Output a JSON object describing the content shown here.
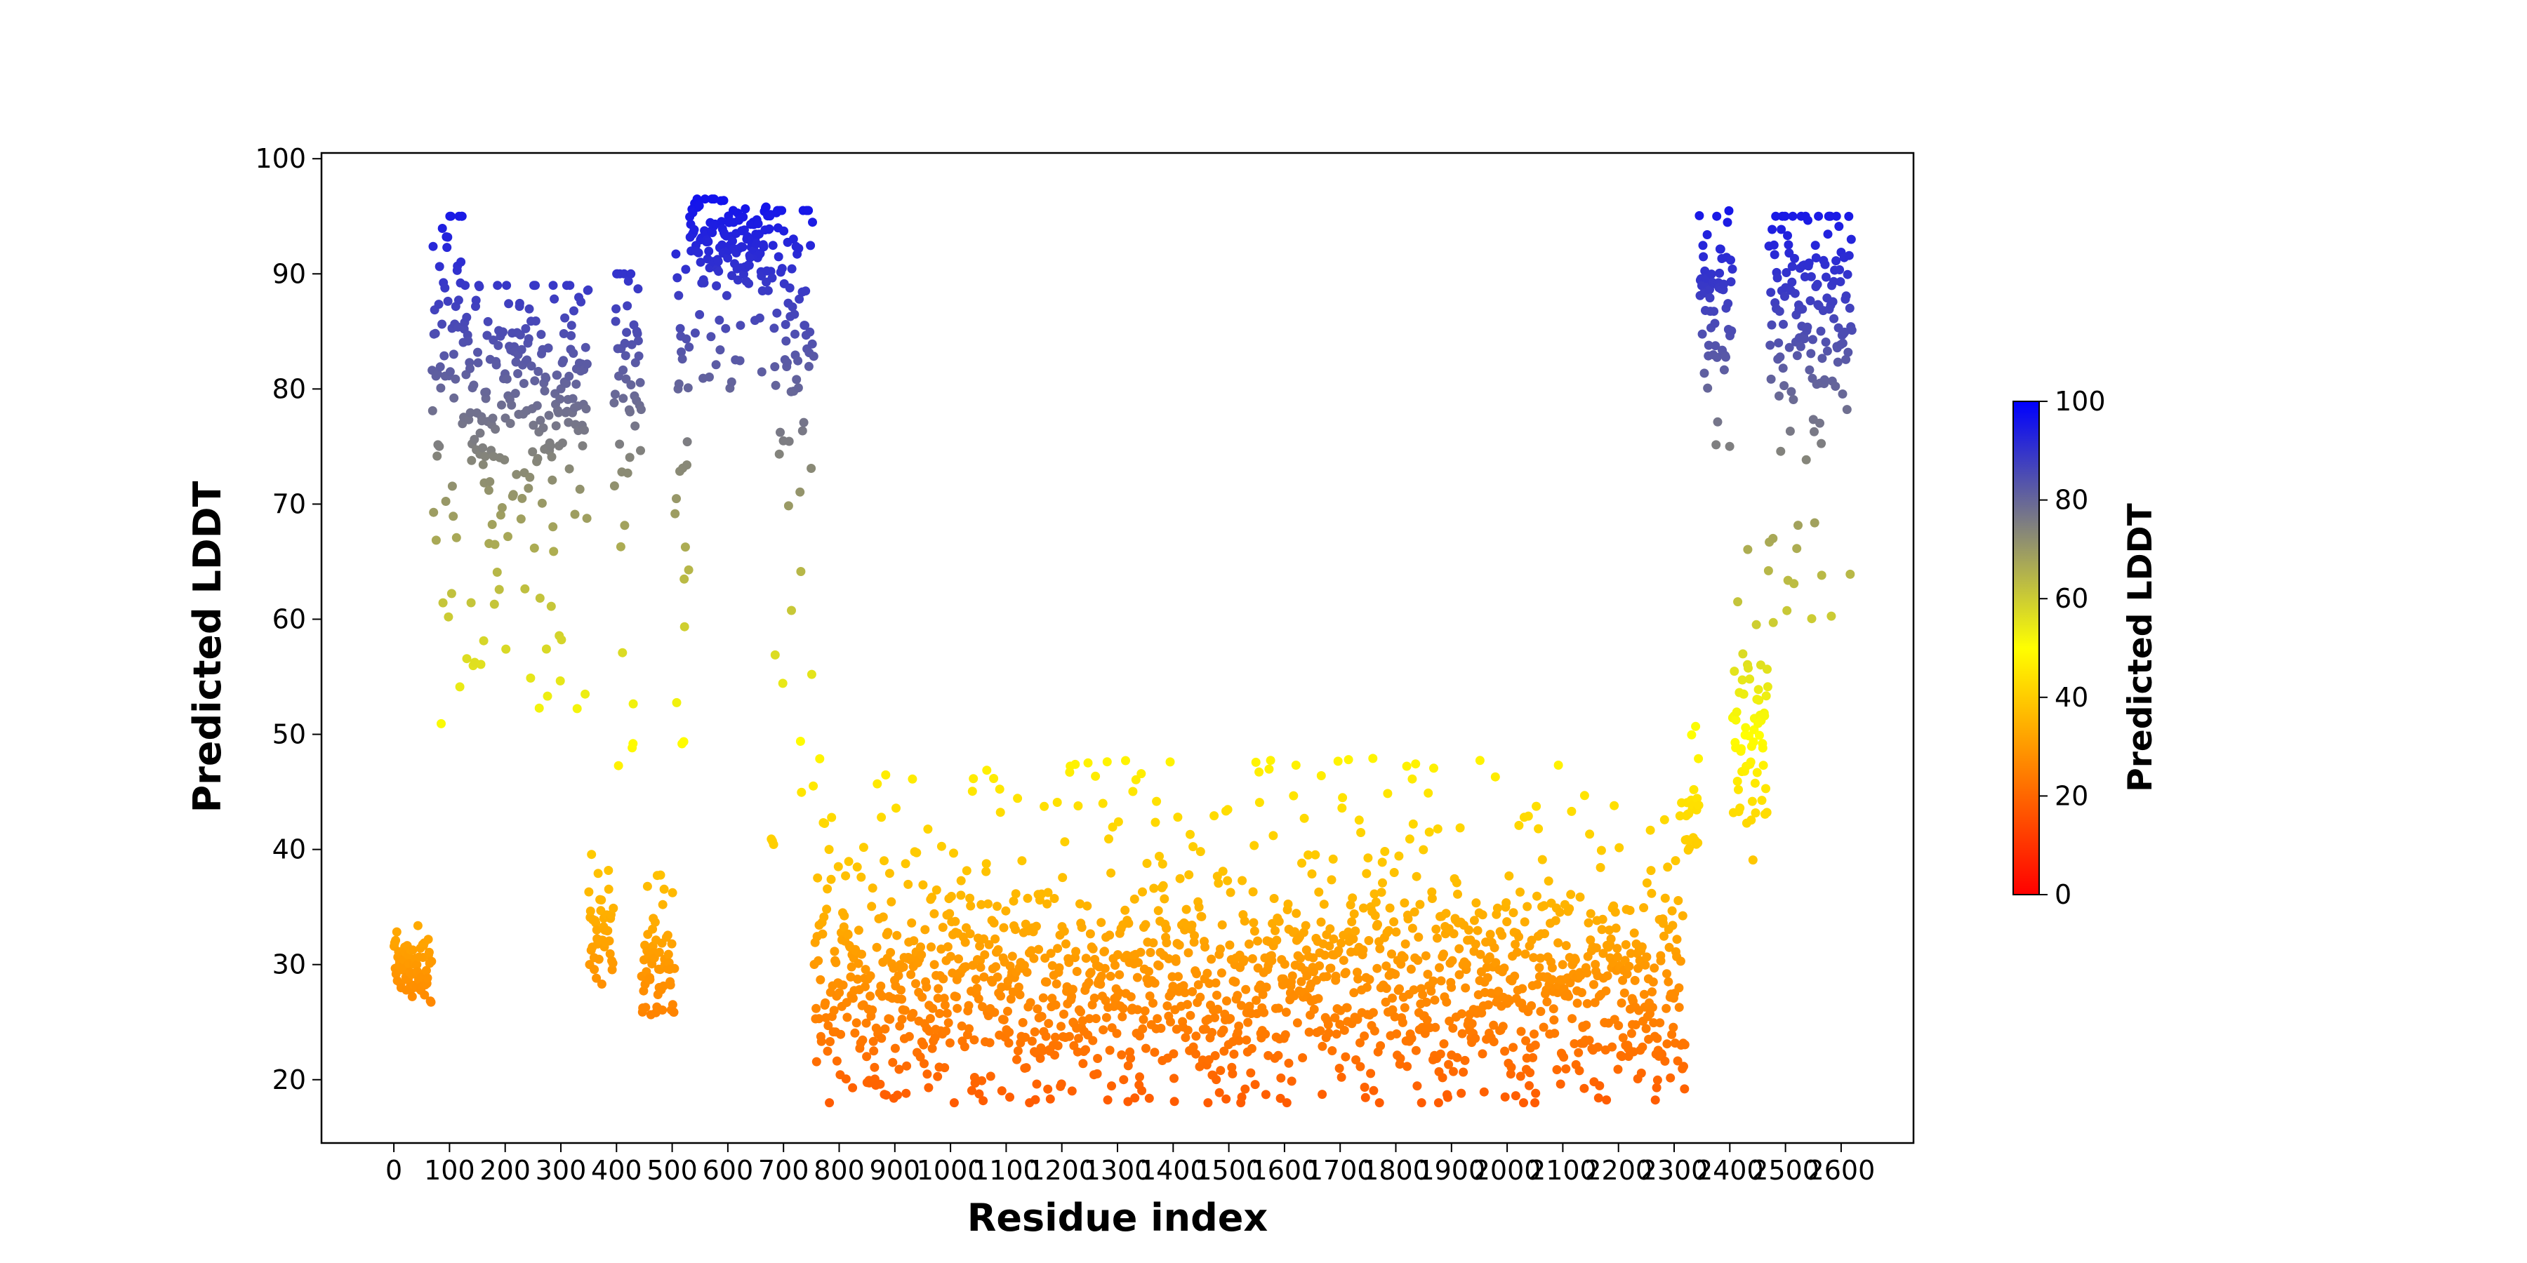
{
  "chart_data": {
    "type": "scatter",
    "title": "",
    "xlabel": "Residue index",
    "ylabel": "Predicted LDDT",
    "xlim": [
      -130,
      2730
    ],
    "ylim": [
      14.5,
      100.5
    ],
    "x_ticks": [
      0,
      100,
      200,
      300,
      400,
      500,
      600,
      700,
      800,
      900,
      1000,
      1100,
      1200,
      1300,
      1400,
      1500,
      1600,
      1700,
      1800,
      1900,
      2000,
      2100,
      2200,
      2300,
      2400,
      2500,
      2600
    ],
    "x_tick_labels": [
      "0",
      "100",
      "200",
      "300",
      "400",
      "500",
      "600",
      "700",
      "800",
      "900",
      "1000",
      "1100",
      "1200",
      "1300",
      "1400",
      "1500",
      "1600",
      "1700",
      "1800",
      "1900",
      "2000",
      "2100",
      "2200",
      "2300",
      "2400",
      "2500",
      "2600"
    ],
    "y_ticks": [
      20,
      30,
      40,
      50,
      60,
      70,
      80,
      90,
      100
    ],
    "y_tick_labels": [
      "20",
      "30",
      "40",
      "50",
      "60",
      "70",
      "80",
      "90",
      "100"
    ],
    "grid": false,
    "colorbar": {
      "label": "Predicted LDDT",
      "range": [
        0,
        100
      ],
      "ticks": [
        0,
        20,
        40,
        60,
        80,
        100
      ],
      "tick_labels": [
        "0",
        "20",
        "40",
        "60",
        "80",
        "100"
      ],
      "colors": [
        "#ff0000",
        "#ffff00",
        "#0000ff"
      ]
    },
    "segments": [
      {
        "x": [
          0,
          68
        ],
        "y_low": 25,
        "y_high": 34,
        "y_mean": 29.5
      },
      {
        "x": [
          68,
          125
        ],
        "y_low": 47,
        "y_high": 95,
        "y_mean": 88
      },
      {
        "x": [
          125,
          350
        ],
        "y_low": 52,
        "y_high": 89,
        "y_mean": 80
      },
      {
        "x": [
          350,
          395
        ],
        "y_low": 27,
        "y_high": 40,
        "y_mean": 33
      },
      {
        "x": [
          395,
          445
        ],
        "y_low": 45,
        "y_high": 90,
        "y_mean": 82
      },
      {
        "x": [
          445,
          505
        ],
        "y_low": 25,
        "y_high": 39,
        "y_mean": 30
      },
      {
        "x": [
          505,
          530
        ],
        "y_low": 49,
        "y_high": 93,
        "y_mean": 78
      },
      {
        "x": [
          530,
          675
        ],
        "y_low": 80,
        "y_high": 96.5,
        "y_mean": 92.5
      },
      {
        "x": [
          675,
          755
        ],
        "y_low": 38,
        "y_high": 95.5,
        "y_mean": 88
      },
      {
        "x": [
          755,
          2320
        ],
        "y_low": 18,
        "y_high": 48,
        "y_mean": 28
      },
      {
        "x": [
          2320,
          2345
        ],
        "y_low": 36,
        "y_high": 52,
        "y_mean": 42
      },
      {
        "x": [
          2345,
          2405
        ],
        "y_low": 75,
        "y_high": 95.5,
        "y_mean": 88
      },
      {
        "x": [
          2405,
          2470
        ],
        "y_low": 39,
        "y_high": 68,
        "y_mean": 50
      },
      {
        "x": [
          2470,
          2620
        ],
        "y_low": 59,
        "y_high": 95,
        "y_mean": 88
      }
    ],
    "n_points": 2620
  }
}
